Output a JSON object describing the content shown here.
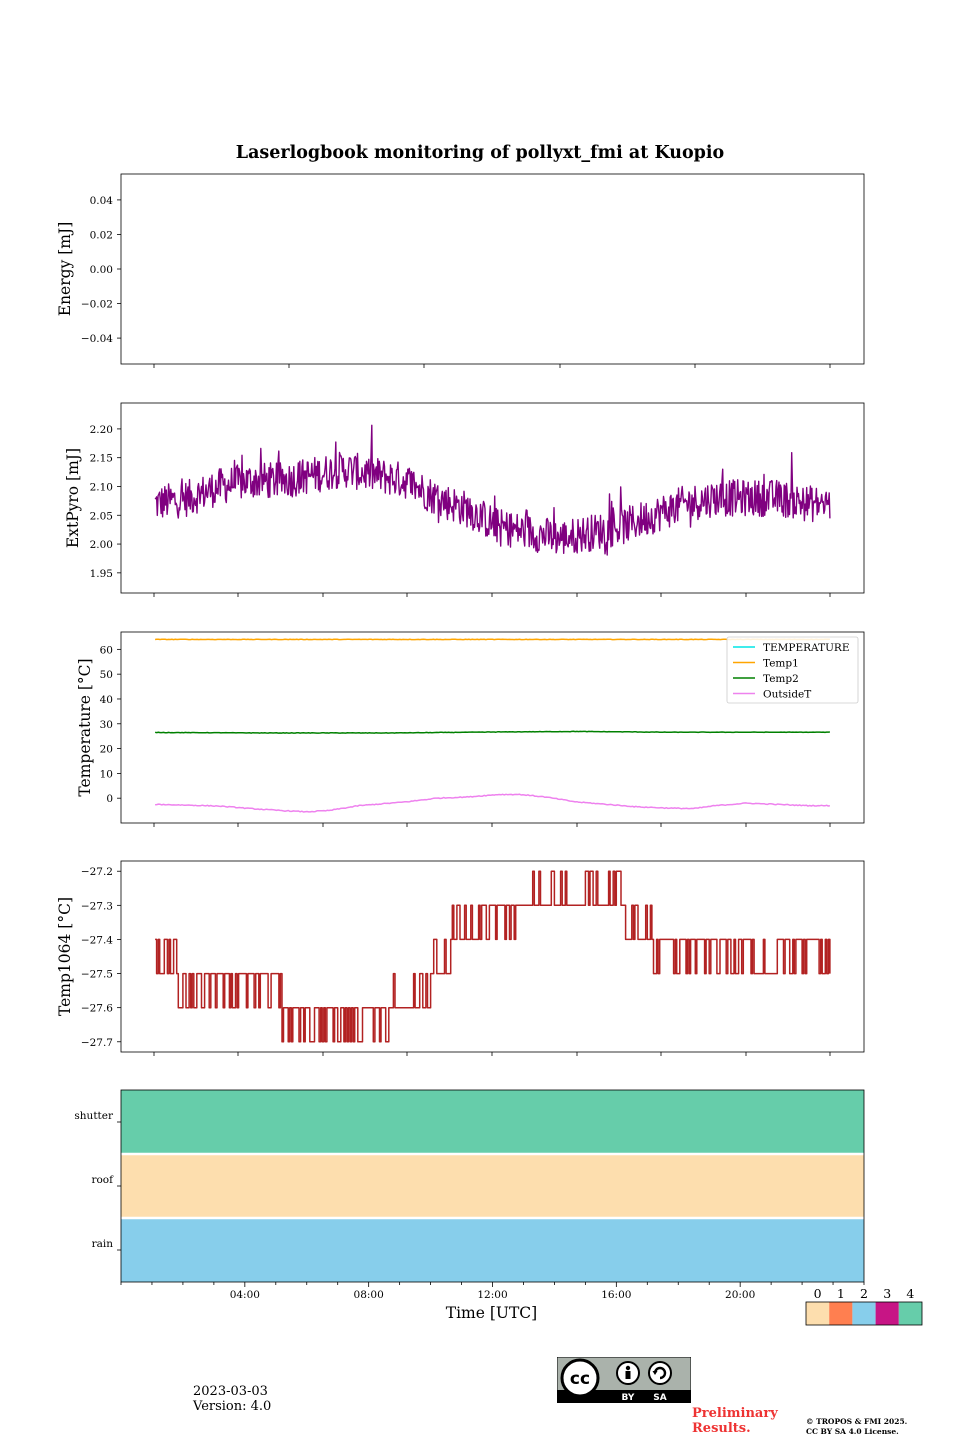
{
  "title": "Laserlogbook monitoring of pollyxt_fmi at Kuopio",
  "chart_data": [
    {
      "type": "line",
      "ylabel": "Energy [mJ]",
      "ylim": [
        -0.055,
        0.055
      ],
      "yticks": [
        0.04,
        0.02,
        0.0,
        -0.02,
        -0.04
      ],
      "ytick_labels": [
        "0.04",
        "0.02",
        "0.00",
        "−0.02",
        "−0.04"
      ],
      "xlim_hours": [
        0.3,
        24.3
      ],
      "series": []
    },
    {
      "type": "line",
      "ylabel": "ExtPyro [mJ]",
      "ylim": [
        1.915,
        2.245
      ],
      "yticks": [
        2.2,
        2.15,
        2.1,
        2.05,
        2.0,
        1.95
      ],
      "ytick_labels": [
        "2.20",
        "2.15",
        "2.10",
        "2.05",
        "2.00",
        "1.95"
      ],
      "xlim_hours": [
        0.3,
        24.3
      ],
      "series": [
        {
          "name": "ExtPyro",
          "color": "#800080",
          "x_hours": [
            1.4,
            2.5,
            3.5,
            4.5,
            5.5,
            6.5,
            7.5,
            8.5,
            9.5,
            10.5,
            11.5,
            12.5,
            13.5,
            14.5,
            15.5,
            16.5,
            17.5,
            18.5,
            19.5,
            20.5,
            21.5,
            22.5,
            23.2
          ],
          "values": [
            2.07,
            2.08,
            2.1,
            2.11,
            2.11,
            2.12,
            2.13,
            2.12,
            2.11,
            2.08,
            2.06,
            2.03,
            2.02,
            2.01,
            2.02,
            2.03,
            2.05,
            2.07,
            2.08,
            2.08,
            2.08,
            2.07,
            2.07
          ],
          "noise": 0.04
        }
      ]
    },
    {
      "type": "line",
      "ylabel": "Temperature [°C]",
      "ylim": [
        -10,
        67
      ],
      "yticks": [
        60,
        50,
        40,
        30,
        20,
        10,
        0
      ],
      "ytick_labels": [
        "60",
        "50",
        "40",
        "30",
        "20",
        "10",
        "0"
      ],
      "xlim_hours": [
        0.3,
        24.3
      ],
      "legend": {
        "placement": "top-right",
        "entries": [
          "TEMPERATURE",
          "Temp1",
          "Temp2",
          "OutsideT"
        ]
      },
      "series": [
        {
          "name": "TEMPERATURE",
          "color": "#00e5e5",
          "x_hours": [],
          "values": []
        },
        {
          "name": "Temp1",
          "color": "#ffa500",
          "x_hours": [
            1.4,
            23.2
          ],
          "values": [
            64,
            64
          ]
        },
        {
          "name": "Temp2",
          "color": "#008000",
          "x_hours": [
            1.4,
            5.0,
            9.0,
            12.5,
            15.0,
            18.0,
            23.2
          ],
          "values": [
            26.5,
            26.3,
            26.3,
            26.7,
            26.9,
            26.6,
            26.6
          ]
        },
        {
          "name": "OutsideT",
          "color": "#ee82ee",
          "x_hours": [
            1.4,
            2.5,
            3.5,
            4.5,
            5.5,
            6.3,
            7.0,
            7.5,
            8.0,
            8.5,
            9.5,
            10.5,
            11.5,
            12.0,
            12.5,
            13.2,
            14.0,
            15.0,
            16.0,
            17.0,
            18.0,
            18.8,
            19.5,
            20.5,
            21.5,
            22.5,
            23.2
          ],
          "values": [
            -2.5,
            -2.8,
            -3.2,
            -4.2,
            -5.0,
            -5.5,
            -5.0,
            -4.0,
            -3.0,
            -2.5,
            -1.5,
            0.0,
            0.5,
            1.0,
            1.5,
            1.5,
            0.5,
            -1.5,
            -2.5,
            -3.5,
            -4.0,
            -4.2,
            -3.0,
            -2.0,
            -2.5,
            -3.0,
            -3.0
          ]
        }
      ]
    },
    {
      "type": "line",
      "ylabel": "Temp1064 [°C]",
      "ylim": [
        -27.73,
        -27.17
      ],
      "yticks": [
        -27.2,
        -27.3,
        -27.4,
        -27.5,
        -27.6,
        -27.7
      ],
      "ytick_labels": [
        "−27.2",
        "−27.3",
        "−27.4",
        "−27.5",
        "−27.6",
        "−27.7"
      ],
      "xlim_hours": [
        0.3,
        24.3
      ],
      "series": [
        {
          "name": "Temp1064",
          "color": "#b22222",
          "segments": [
            {
              "from": 1.4,
              "to": 2.1,
              "base": -27.5,
              "alt": -27.4
            },
            {
              "from": 2.1,
              "to": 5.5,
              "base": -27.5,
              "alt": -27.6
            },
            {
              "from": 5.5,
              "to": 7.0,
              "base": -27.6,
              "alt": -27.7
            },
            {
              "from": 7.0,
              "to": 9.0,
              "base": -27.6,
              "alt": -27.7
            },
            {
              "from": 9.0,
              "to": 10.3,
              "base": -27.6,
              "alt": -27.5
            },
            {
              "from": 10.3,
              "to": 11.0,
              "base": -27.5,
              "alt": -27.4
            },
            {
              "from": 11.0,
              "to": 12.0,
              "base": -27.4,
              "alt": -27.3
            },
            {
              "from": 12.0,
              "to": 13.5,
              "base": -27.3,
              "alt": -27.4
            },
            {
              "from": 13.5,
              "to": 15.3,
              "base": -27.3,
              "alt": -27.2
            },
            {
              "from": 15.3,
              "to": 16.6,
              "base": -27.3,
              "alt": -27.2
            },
            {
              "from": 16.6,
              "to": 17.5,
              "base": -27.4,
              "alt": -27.3
            },
            {
              "from": 17.5,
              "to": 20.0,
              "base": -27.4,
              "alt": -27.5
            },
            {
              "from": 20.0,
              "to": 21.5,
              "base": -27.5,
              "alt": -27.4
            },
            {
              "from": 21.5,
              "to": 23.2,
              "base": -27.4,
              "alt": -27.5
            }
          ]
        }
      ]
    },
    {
      "type": "heatmap",
      "rows": [
        "shutter",
        "roof",
        "rain"
      ],
      "row_status": [
        4,
        0,
        2
      ],
      "xlabel": "Time [UTC]",
      "xlim_hours": [
        0,
        24
      ],
      "xticks_hours": [
        4,
        8,
        12,
        16,
        20
      ],
      "xtick_labels": [
        "04:00",
        "08:00",
        "12:00",
        "16:00",
        "20:00"
      ],
      "colorbar": {
        "labels": [
          "0",
          "1",
          "2",
          "3",
          "4"
        ],
        "colors": [
          "#fddeae",
          "#ff7f50",
          "#87ceeb",
          "#c71585",
          "#66cdaa"
        ]
      }
    }
  ],
  "footer": {
    "date": "2023-03-03",
    "version": "Version: 4.0",
    "preliminary_1": "Preliminary",
    "preliminary_2": "Results.",
    "copyright_1": "© TROPOS & FMI 2025.",
    "copyright_2": "CC BY SA 4.0 License.",
    "license_by": "BY",
    "license_sa": "SA",
    "license_cc": "cc"
  }
}
